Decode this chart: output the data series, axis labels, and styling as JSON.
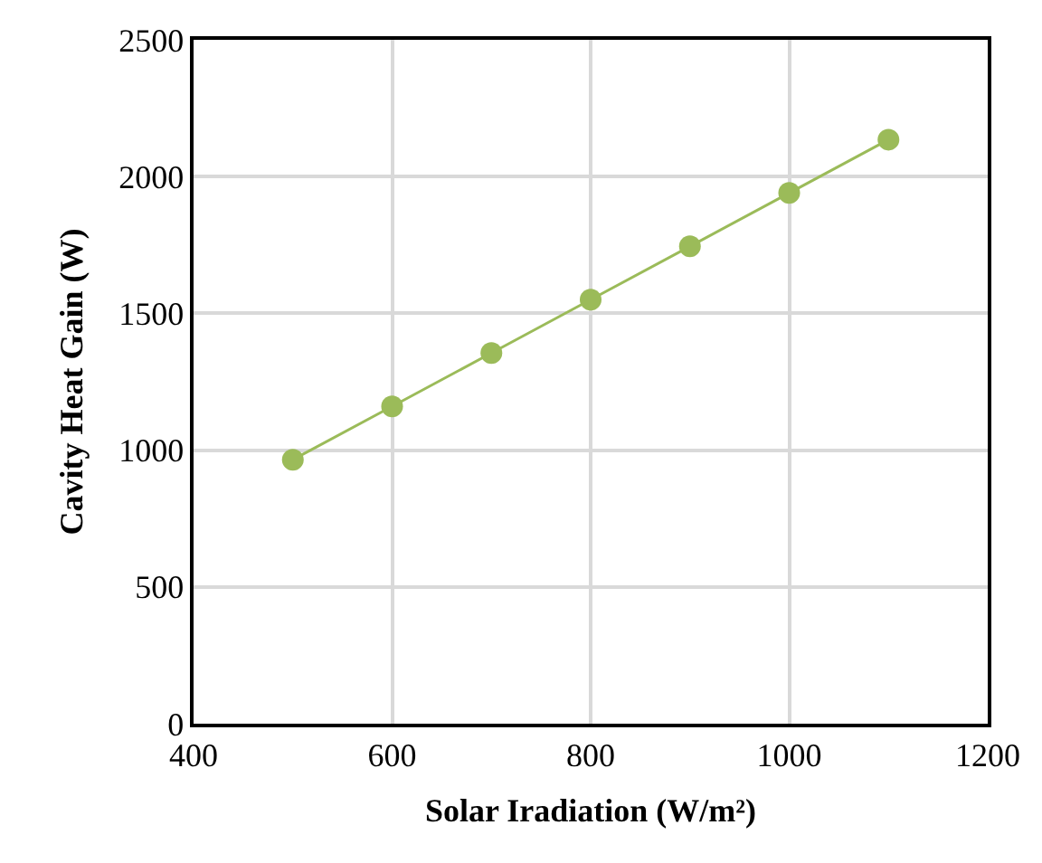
{
  "chart_data": {
    "type": "line",
    "xlabel": "Solar Iradiation (W/m²)",
    "ylabel": "Cavity Heat Gain (W)",
    "x": [
      500,
      600,
      700,
      800,
      900,
      1000,
      1100
    ],
    "series": [
      {
        "color": "#9bbb59",
        "values": [
          965,
          1160,
          1355,
          1550,
          1745,
          1940,
          2135
        ]
      }
    ],
    "xlim": [
      400,
      1200
    ],
    "xticks": [
      400,
      600,
      800,
      1000,
      1200
    ],
    "ylim": [
      0,
      2500
    ],
    "yticks": [
      0,
      500,
      1000,
      1500,
      2000,
      2500
    ],
    "grid": true,
    "marker": "circle",
    "line_style": "solid"
  }
}
